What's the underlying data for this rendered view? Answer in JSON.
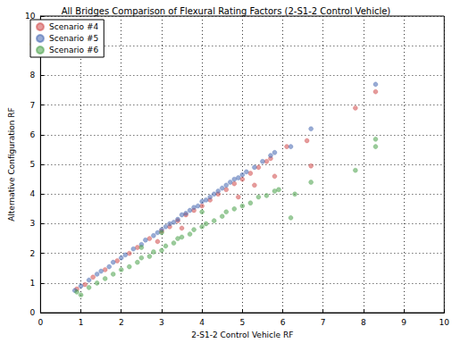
{
  "chart_data": {
    "type": "scatter",
    "title": "All Bridges Comparison of Flexural Rating Factors (2-S1-2 Control Vehicle)",
    "x_label": "2-S1-2 Control Vehicle RF",
    "y_label": "Alternative Configuration RF",
    "xlim": [
      0,
      10
    ],
    "xticks": [
      0,
      1,
      2,
      3,
      4,
      5,
      6,
      7,
      8,
      9,
      10
    ],
    "ylim": [
      0,
      10
    ],
    "yticks": [
      0,
      1,
      2,
      3,
      4,
      5,
      6,
      7,
      8,
      9,
      10
    ],
    "grid": true,
    "legend": "upper left",
    "marker": "circle",
    "series": [
      {
        "name": "Scenario #4",
        "color": "#d04848",
        "x": [
          0.9,
          1.1,
          1.3,
          1.6,
          1.9,
          2.2,
          2.4,
          2.7,
          3.0,
          3.2,
          3.4,
          3.6,
          3.8,
          4.0,
          4.2,
          4.4,
          4.6,
          4.8,
          5.0,
          5.2,
          5.4,
          5.6,
          5.7,
          4.9,
          5.3,
          5.8,
          6.1,
          6.6,
          6.7,
          7.8,
          8.3,
          3.5,
          2.9
        ],
        "values": [
          0.8,
          0.95,
          1.2,
          1.45,
          1.75,
          2.0,
          2.2,
          2.5,
          2.75,
          2.9,
          3.1,
          3.3,
          3.45,
          3.6,
          3.8,
          4.0,
          4.15,
          4.35,
          4.5,
          4.7,
          4.9,
          5.1,
          5.2,
          3.9,
          4.3,
          4.6,
          5.6,
          5.8,
          4.95,
          6.9,
          7.45,
          2.85,
          2.4
        ]
      },
      {
        "name": "Scenario #5",
        "color": "#4466b0",
        "x": [
          0.85,
          1.0,
          1.2,
          1.4,
          1.5,
          1.7,
          1.8,
          2.0,
          2.1,
          2.3,
          2.5,
          2.6,
          2.8,
          2.9,
          3.0,
          3.1,
          3.2,
          3.3,
          3.4,
          3.5,
          3.6,
          3.7,
          3.8,
          3.9,
          4.0,
          4.1,
          4.2,
          4.3,
          4.4,
          4.5,
          4.6,
          4.7,
          4.8,
          4.9,
          5.0,
          5.1,
          5.3,
          5.5,
          5.7,
          5.8,
          6.2,
          6.7,
          8.3
        ],
        "values": [
          0.75,
          0.9,
          1.1,
          1.3,
          1.4,
          1.55,
          1.7,
          1.85,
          1.95,
          2.15,
          2.3,
          2.45,
          2.6,
          2.7,
          2.8,
          2.9,
          3.0,
          3.05,
          3.15,
          3.3,
          3.35,
          3.45,
          3.55,
          3.6,
          3.75,
          3.8,
          3.9,
          4.0,
          4.1,
          4.2,
          4.3,
          4.4,
          4.5,
          4.55,
          4.65,
          4.75,
          4.9,
          5.1,
          5.3,
          5.4,
          5.6,
          6.2,
          7.7
        ]
      },
      {
        "name": "Scenario #6",
        "color": "#48a048",
        "x": [
          0.9,
          1.0,
          1.2,
          1.4,
          1.6,
          1.8,
          2.0,
          2.2,
          2.4,
          2.5,
          2.7,
          2.8,
          3.0,
          3.1,
          3.3,
          3.4,
          3.5,
          3.7,
          3.8,
          4.0,
          4.1,
          4.3,
          4.5,
          4.6,
          4.8,
          5.0,
          5.2,
          5.4,
          5.6,
          5.8,
          5.9,
          6.2,
          6.3,
          6.7,
          7.8,
          8.3,
          8.3,
          3.0,
          4.0,
          2.5
        ],
        "values": [
          0.7,
          0.6,
          0.85,
          1.0,
          1.15,
          1.3,
          1.45,
          1.55,
          1.7,
          1.85,
          1.9,
          2.05,
          2.1,
          2.25,
          2.35,
          2.5,
          2.55,
          2.65,
          2.8,
          2.9,
          3.0,
          3.1,
          3.25,
          3.4,
          3.5,
          3.6,
          3.7,
          3.9,
          3.95,
          4.1,
          4.15,
          3.2,
          4.0,
          4.4,
          4.8,
          5.6,
          5.85,
          2.7,
          3.4,
          2.2
        ]
      }
    ]
  }
}
